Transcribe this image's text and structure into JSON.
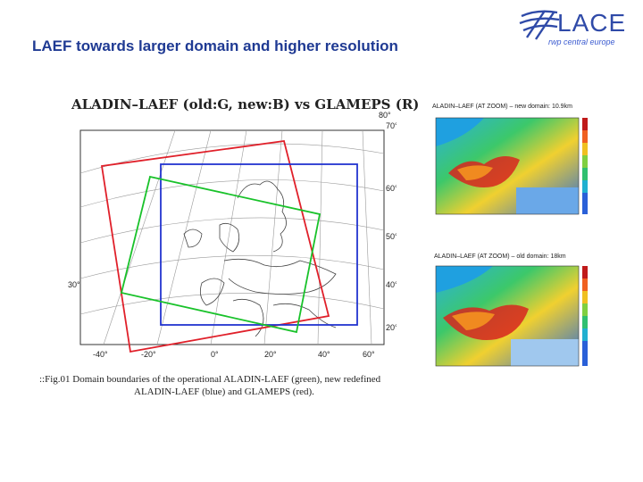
{
  "slide": {
    "title": "LAEF towards larger domain and higher resolution"
  },
  "logo": {
    "name": "LACE",
    "subtitle": "rwp central europe",
    "icon": "swoosh-arrows-icon"
  },
  "main_map": {
    "title": "ALADIN–LAEF (old:G, new:B) vs GLAMEPS (R)",
    "lon_labels": [
      "-40°",
      "-20°",
      "0°",
      "20°",
      "40°",
      "60°",
      "80°"
    ],
    "lat_labels": [
      "70°",
      "60°",
      "50°",
      "40°",
      "30°",
      "20°"
    ],
    "domains": [
      {
        "name": "operational ALADIN-LAEF",
        "color": "#19c22a"
      },
      {
        "name": "new redefined ALADIN-LAEF",
        "color": "#2234d0"
      },
      {
        "name": "GLAMEPS",
        "color": "#e0202a"
      }
    ]
  },
  "caption": {
    "line1": "::Fig.01 Domain boundaries of the operational ALADIN-LAEF (green), new redefined",
    "line2": "ALADIN-LAEF (blue) and GLAMEPS (red)."
  },
  "zoom_panels": [
    {
      "title": "ALADIN–LAEF (AT ZOOM) – new domain: 10.9km"
    },
    {
      "title": "ALADIN–LAEF (AT ZOOM) – old domain: 18km"
    }
  ],
  "colors": {
    "title": "#1f3a93",
    "logo": "#2f4aa8"
  }
}
